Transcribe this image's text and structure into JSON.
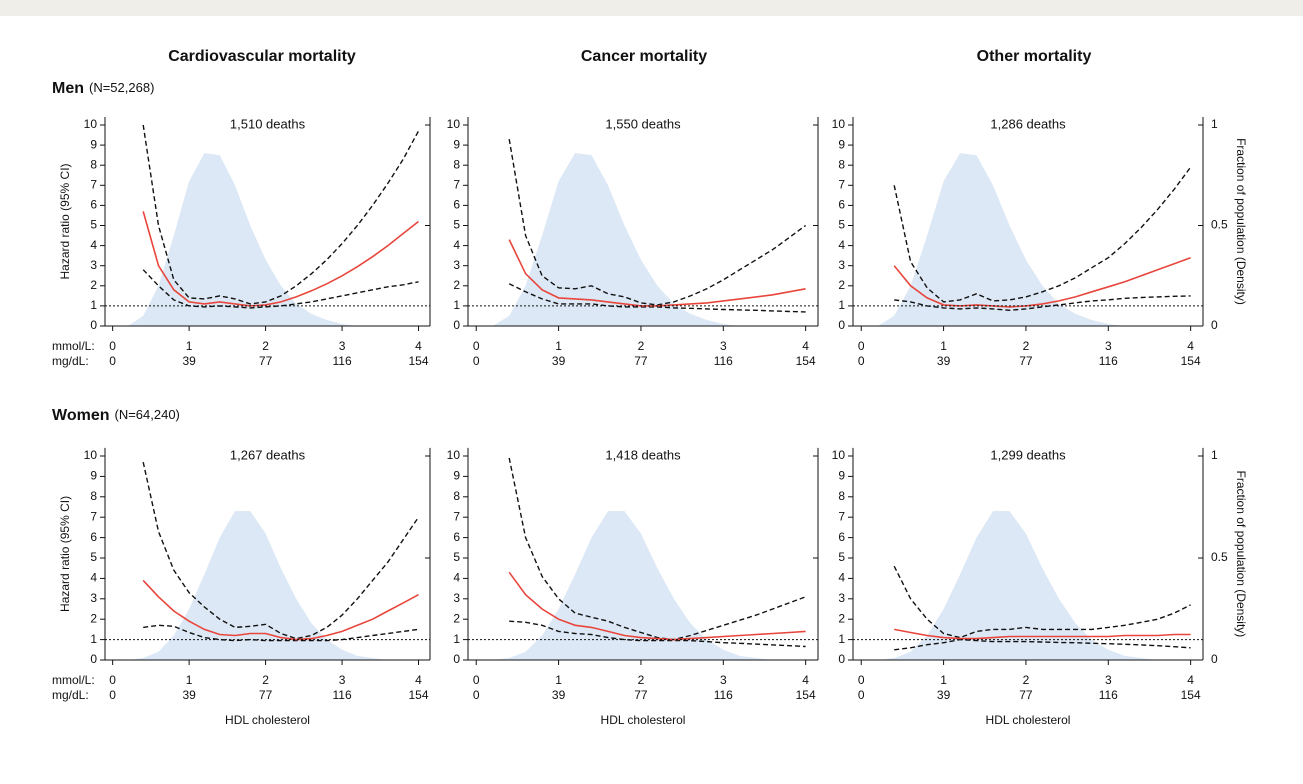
{
  "column_titles": [
    "Cardiovascular mortality",
    "Cancer mortality",
    "Other mortality"
  ],
  "rows": [
    {
      "title": "Men",
      "subtitle": "(N=52,268)"
    },
    {
      "title": "Women",
      "subtitle": "(N=64,240)"
    }
  ],
  "y_label": "Hazard ratio (95% CI)",
  "y2_label": "Fraction of population (Density)",
  "x_label": "HDL cholesterol",
  "x_unit_labels": [
    "mmol/L:",
    "mg/dL:"
  ],
  "chart_data": [
    {
      "type": "line",
      "subtitle": "1,510 deaths",
      "hline": 1,
      "x": [
        0.2,
        0.4,
        0.6,
        0.8,
        1.0,
        1.2,
        1.4,
        1.6,
        1.8,
        2.0,
        2.2,
        2.4,
        2.6,
        2.8,
        3.0,
        3.2,
        3.4,
        3.6,
        3.8,
        4.0
      ],
      "xlim": [
        -0.1,
        4.15
      ],
      "xticks": [
        0,
        1,
        2,
        3,
        4
      ],
      "xticks2": [
        0,
        {
          "value": 1,
          "label": "39"
        },
        {
          "value": 2,
          "label": "77"
        },
        {
          "value": 3,
          "label": "116"
        },
        {
          "value": 4,
          "label": "154"
        }
      ],
      "ylim": [
        0,
        10.4
      ],
      "yticks": [
        0,
        1,
        2,
        3,
        4,
        5,
        6,
        7,
        8,
        9,
        10
      ],
      "y2lim": [
        0,
        1.04
      ],
      "y2ticks": [
        0,
        0.5,
        1
      ],
      "series": [
        {
          "type": "area",
          "axis": "y2",
          "color": "#dce8f5",
          "values": [
            0,
            0.05,
            0.2,
            0.45,
            0.72,
            0.86,
            0.85,
            0.7,
            0.5,
            0.33,
            0.2,
            0.11,
            0.06,
            0.03,
            0.01,
            0,
            0,
            0,
            0,
            0
          ]
        },
        {
          "color": "#111111",
          "dash": true,
          "values": [
            null,
            10.0,
            5.0,
            2.3,
            1.4,
            1.35,
            1.5,
            1.35,
            1.1,
            1.2,
            1.5,
            2.0,
            2.6,
            3.3,
            4.1,
            5.0,
            6.0,
            7.1,
            8.3,
            9.7
          ]
        },
        {
          "color": "#111111",
          "dash": true,
          "values": [
            null,
            2.8,
            2.0,
            1.3,
            1.0,
            0.95,
            1.0,
            0.95,
            0.9,
            0.95,
            1.0,
            1.1,
            1.2,
            1.35,
            1.5,
            1.65,
            1.8,
            1.95,
            2.05,
            2.2
          ]
        },
        {
          "color": "#e8463c",
          "values": [
            null,
            5.7,
            3.0,
            1.8,
            1.2,
            1.1,
            1.2,
            1.1,
            1.0,
            1.05,
            1.2,
            1.45,
            1.75,
            2.1,
            2.5,
            2.95,
            3.45,
            4.0,
            4.6,
            5.2
          ]
        }
      ]
    },
    {
      "type": "line",
      "subtitle": "1,550 deaths",
      "hline": 1,
      "x": [
        0.2,
        0.4,
        0.6,
        0.8,
        1.0,
        1.2,
        1.4,
        1.6,
        1.8,
        2.0,
        2.2,
        2.4,
        2.6,
        2.8,
        3.0,
        3.2,
        3.4,
        3.6,
        3.8,
        4.0
      ],
      "xlim": [
        -0.1,
        4.15
      ],
      "xticks": [
        0,
        1,
        2,
        3,
        4
      ],
      "xticks2": [
        0,
        {
          "value": 1,
          "label": "39"
        },
        {
          "value": 2,
          "label": "77"
        },
        {
          "value": 3,
          "label": "116"
        },
        {
          "value": 4,
          "label": "154"
        }
      ],
      "ylim": [
        0,
        10.4
      ],
      "yticks": [
        0,
        1,
        2,
        3,
        4,
        5,
        6,
        7,
        8,
        9,
        10
      ],
      "y2lim": [
        0,
        1.04
      ],
      "y2ticks": [
        0,
        0.5,
        1
      ],
      "series": [
        {
          "type": "area",
          "axis": "y2",
          "color": "#dce8f5",
          "values": [
            0,
            0.05,
            0.2,
            0.45,
            0.72,
            0.86,
            0.85,
            0.7,
            0.5,
            0.33,
            0.2,
            0.11,
            0.06,
            0.03,
            0.01,
            0,
            0,
            0,
            0,
            0
          ]
        },
        {
          "color": "#111111",
          "dash": true,
          "values": [
            null,
            9.3,
            4.5,
            2.5,
            1.9,
            1.85,
            2.0,
            1.6,
            1.45,
            1.15,
            1.05,
            1.2,
            1.5,
            1.85,
            2.3,
            2.8,
            3.3,
            3.8,
            4.4,
            5.0
          ]
        },
        {
          "color": "#111111",
          "dash": true,
          "values": [
            null,
            2.1,
            1.7,
            1.35,
            1.1,
            1.1,
            1.1,
            1.0,
            0.95,
            0.95,
            0.95,
            0.9,
            0.88,
            0.85,
            0.82,
            0.8,
            0.78,
            0.75,
            0.72,
            0.7
          ]
        },
        {
          "color": "#e8463c",
          "values": [
            null,
            4.3,
            2.6,
            1.8,
            1.4,
            1.35,
            1.3,
            1.2,
            1.1,
            1.0,
            1.0,
            1.05,
            1.1,
            1.15,
            1.25,
            1.35,
            1.45,
            1.55,
            1.7,
            1.85
          ]
        }
      ]
    },
    {
      "type": "line",
      "subtitle": "1,286 deaths",
      "hline": 1,
      "x": [
        0.2,
        0.4,
        0.6,
        0.8,
        1.0,
        1.2,
        1.4,
        1.6,
        1.8,
        2.0,
        2.2,
        2.4,
        2.6,
        2.8,
        3.0,
        3.2,
        3.4,
        3.6,
        3.8,
        4.0
      ],
      "xlim": [
        -0.1,
        4.15
      ],
      "xticks": [
        0,
        1,
        2,
        3,
        4
      ],
      "xticks2": [
        0,
        {
          "value": 1,
          "label": "39"
        },
        {
          "value": 2,
          "label": "77"
        },
        {
          "value": 3,
          "label": "116"
        },
        {
          "value": 4,
          "label": "154"
        }
      ],
      "ylim": [
        0,
        10.4
      ],
      "yticks": [
        0,
        1,
        2,
        3,
        4,
        5,
        6,
        7,
        8,
        9,
        10
      ],
      "y2lim": [
        0,
        1.04
      ],
      "y2ticks": [
        0,
        0.5,
        1
      ],
      "series": [
        {
          "type": "area",
          "axis": "y2",
          "color": "#dce8f5",
          "values": [
            0,
            0.05,
            0.2,
            0.45,
            0.72,
            0.86,
            0.85,
            0.7,
            0.5,
            0.33,
            0.2,
            0.11,
            0.06,
            0.03,
            0.01,
            0,
            0,
            0,
            0,
            0
          ]
        },
        {
          "color": "#111111",
          "dash": true,
          "values": [
            null,
            7.0,
            3.2,
            1.9,
            1.2,
            1.3,
            1.6,
            1.25,
            1.3,
            1.45,
            1.7,
            2.0,
            2.4,
            2.9,
            3.4,
            4.1,
            4.9,
            5.8,
            6.8,
            7.9
          ]
        },
        {
          "color": "#111111",
          "dash": true,
          "values": [
            null,
            1.3,
            1.2,
            1.0,
            0.9,
            0.85,
            0.9,
            0.85,
            0.78,
            0.85,
            0.95,
            1.05,
            1.15,
            1.25,
            1.3,
            1.38,
            1.42,
            1.45,
            1.48,
            1.5
          ]
        },
        {
          "color": "#e8463c",
          "values": [
            null,
            3.0,
            2.0,
            1.4,
            1.05,
            1.0,
            1.05,
            1.0,
            0.95,
            1.0,
            1.1,
            1.25,
            1.45,
            1.7,
            1.95,
            2.2,
            2.5,
            2.8,
            3.1,
            3.4
          ]
        }
      ]
    },
    {
      "type": "line",
      "subtitle": "1,267 deaths",
      "hline": 1,
      "x": [
        0.2,
        0.4,
        0.6,
        0.8,
        1.0,
        1.2,
        1.4,
        1.6,
        1.8,
        2.0,
        2.2,
        2.4,
        2.6,
        2.8,
        3.0,
        3.2,
        3.4,
        3.6,
        3.8,
        4.0
      ],
      "xlim": [
        -0.1,
        4.15
      ],
      "xticks": [
        0,
        1,
        2,
        3,
        4
      ],
      "xticks2": [
        0,
        {
          "value": 1,
          "label": "39"
        },
        {
          "value": 2,
          "label": "77"
        },
        {
          "value": 3,
          "label": "116"
        },
        {
          "value": 4,
          "label": "154"
        }
      ],
      "ylim": [
        0,
        10.4
      ],
      "yticks": [
        0,
        1,
        2,
        3,
        4,
        5,
        6,
        7,
        8,
        9,
        10
      ],
      "y2lim": [
        0,
        1.04
      ],
      "y2ticks": [
        0,
        0.5,
        1
      ],
      "series": [
        {
          "type": "area",
          "axis": "y2",
          "color": "#dce8f5",
          "values": [
            0,
            0.01,
            0.04,
            0.12,
            0.25,
            0.42,
            0.6,
            0.73,
            0.73,
            0.62,
            0.45,
            0.3,
            0.18,
            0.1,
            0.05,
            0.02,
            0.01,
            0,
            0,
            0
          ]
        },
        {
          "color": "#111111",
          "dash": true,
          "values": [
            null,
            9.7,
            6.3,
            4.4,
            3.3,
            2.6,
            2.0,
            1.6,
            1.65,
            1.75,
            1.3,
            1.05,
            1.2,
            1.6,
            2.2,
            3.0,
            3.9,
            4.8,
            5.9,
            7.0
          ]
        },
        {
          "color": "#111111",
          "dash": true,
          "values": [
            null,
            1.6,
            1.7,
            1.65,
            1.35,
            1.1,
            1.0,
            0.95,
            1.0,
            0.95,
            0.95,
            0.95,
            0.95,
            0.95,
            1.0,
            1.1,
            1.2,
            1.3,
            1.4,
            1.5
          ]
        },
        {
          "color": "#e8463c",
          "values": [
            null,
            3.9,
            3.1,
            2.4,
            1.9,
            1.5,
            1.25,
            1.2,
            1.3,
            1.3,
            1.1,
            1.0,
            1.05,
            1.2,
            1.4,
            1.7,
            2.0,
            2.4,
            2.8,
            3.2
          ]
        }
      ]
    },
    {
      "type": "line",
      "subtitle": "1,418 deaths",
      "hline": 1,
      "x": [
        0.2,
        0.4,
        0.6,
        0.8,
        1.0,
        1.2,
        1.4,
        1.6,
        1.8,
        2.0,
        2.2,
        2.4,
        2.6,
        2.8,
        3.0,
        3.2,
        3.4,
        3.6,
        3.8,
        4.0
      ],
      "xlim": [
        -0.1,
        4.15
      ],
      "xticks": [
        0,
        1,
        2,
        3,
        4
      ],
      "xticks2": [
        0,
        {
          "value": 1,
          "label": "39"
        },
        {
          "value": 2,
          "label": "77"
        },
        {
          "value": 3,
          "label": "116"
        },
        {
          "value": 4,
          "label": "154"
        }
      ],
      "ylim": [
        0,
        10.4
      ],
      "yticks": [
        0,
        1,
        2,
        3,
        4,
        5,
        6,
        7,
        8,
        9,
        10
      ],
      "y2lim": [
        0,
        1.04
      ],
      "y2ticks": [
        0,
        0.5,
        1
      ],
      "series": [
        {
          "type": "area",
          "axis": "y2",
          "color": "#dce8f5",
          "values": [
            0,
            0.01,
            0.04,
            0.12,
            0.25,
            0.42,
            0.6,
            0.73,
            0.73,
            0.62,
            0.45,
            0.3,
            0.18,
            0.1,
            0.05,
            0.02,
            0.01,
            0,
            0,
            0
          ]
        },
        {
          "color": "#111111",
          "dash": true,
          "values": [
            null,
            9.9,
            6.0,
            4.1,
            3.0,
            2.3,
            2.1,
            1.9,
            1.6,
            1.35,
            1.1,
            1.0,
            1.2,
            1.45,
            1.7,
            1.95,
            2.2,
            2.5,
            2.8,
            3.1
          ]
        },
        {
          "color": "#111111",
          "dash": true,
          "values": [
            null,
            1.9,
            1.85,
            1.7,
            1.4,
            1.3,
            1.25,
            1.1,
            1.0,
            0.95,
            0.95,
            0.95,
            0.95,
            0.9,
            0.85,
            0.82,
            0.78,
            0.74,
            0.7,
            0.66
          ]
        },
        {
          "color": "#e8463c",
          "values": [
            null,
            4.3,
            3.2,
            2.5,
            2.0,
            1.7,
            1.6,
            1.4,
            1.2,
            1.1,
            1.05,
            1.0,
            1.05,
            1.1,
            1.15,
            1.2,
            1.25,
            1.3,
            1.35,
            1.4
          ]
        }
      ]
    },
    {
      "type": "line",
      "subtitle": "1,299 deaths",
      "hline": 1,
      "x": [
        0.2,
        0.4,
        0.6,
        0.8,
        1.0,
        1.2,
        1.4,
        1.6,
        1.8,
        2.0,
        2.2,
        2.4,
        2.6,
        2.8,
        3.0,
        3.2,
        3.4,
        3.6,
        3.8,
        4.0
      ],
      "xlim": [
        -0.1,
        4.15
      ],
      "xticks": [
        0,
        1,
        2,
        3,
        4
      ],
      "xticks2": [
        0,
        {
          "value": 1,
          "label": "39"
        },
        {
          "value": 2,
          "label": "77"
        },
        {
          "value": 3,
          "label": "116"
        },
        {
          "value": 4,
          "label": "154"
        }
      ],
      "ylim": [
        0,
        10.4
      ],
      "yticks": [
        0,
        1,
        2,
        3,
        4,
        5,
        6,
        7,
        8,
        9,
        10
      ],
      "y2lim": [
        0,
        1.04
      ],
      "y2ticks": [
        0,
        0.5,
        1
      ],
      "series": [
        {
          "type": "area",
          "axis": "y2",
          "color": "#dce8f5",
          "values": [
            0,
            0.01,
            0.04,
            0.12,
            0.25,
            0.42,
            0.6,
            0.73,
            0.73,
            0.62,
            0.45,
            0.3,
            0.18,
            0.1,
            0.05,
            0.02,
            0.01,
            0,
            0,
            0
          ]
        },
        {
          "color": "#111111",
          "dash": true,
          "values": [
            null,
            4.6,
            3.0,
            2.0,
            1.3,
            1.1,
            1.4,
            1.5,
            1.5,
            1.6,
            1.5,
            1.5,
            1.5,
            1.5,
            1.6,
            1.7,
            1.85,
            2.0,
            2.3,
            2.7
          ]
        },
        {
          "color": "#111111",
          "dash": true,
          "values": [
            null,
            0.5,
            0.6,
            0.75,
            0.85,
            1.0,
            0.95,
            0.9,
            0.9,
            0.9,
            0.88,
            0.86,
            0.85,
            0.82,
            0.8,
            0.77,
            0.74,
            0.7,
            0.65,
            0.6
          ]
        },
        {
          "color": "#e8463c",
          "values": [
            null,
            1.5,
            1.35,
            1.2,
            1.1,
            1.05,
            1.05,
            1.1,
            1.15,
            1.15,
            1.15,
            1.15,
            1.15,
            1.15,
            1.15,
            1.2,
            1.2,
            1.2,
            1.25,
            1.25
          ]
        }
      ]
    }
  ]
}
